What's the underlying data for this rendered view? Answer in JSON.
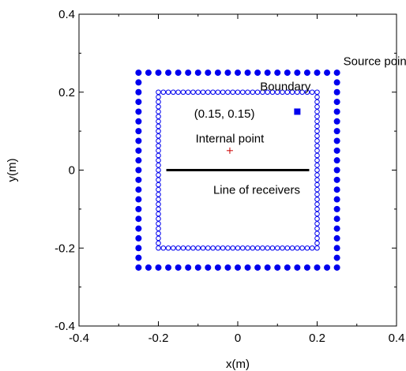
{
  "chart_data": {
    "type": "scatter",
    "xlabel": "x(m)",
    "ylabel": "y(m)",
    "xlim": [
      -0.4,
      0.4
    ],
    "ylim": [
      -0.4,
      0.4
    ],
    "x_ticks": [
      "-0.4",
      "-0.2",
      "0",
      "0.2",
      "0.4"
    ],
    "y_ticks": [
      "0.4",
      "0.2",
      "0",
      "-0.2",
      "-0.4"
    ],
    "grid": false,
    "series": [
      {
        "name": "Source points",
        "shape": "square",
        "marker": "filled-circle",
        "color": "#0000ee",
        "half_size": 0.25,
        "points_per_side": 21
      },
      {
        "name": "Boundary",
        "shape": "square",
        "marker": "open-circle",
        "color": "#0000ee",
        "half_size": 0.2,
        "points_per_side": 33
      },
      {
        "name": "Internal point",
        "marker": "plus",
        "color": "#cc0000",
        "x": -0.02,
        "y": 0.05
      },
      {
        "name": "Line of receivers",
        "marker": "line",
        "color": "#000000",
        "x": [
          -0.18,
          0.18
        ],
        "y": [
          0,
          0
        ]
      },
      {
        "name": "(0.15, 0.15)",
        "marker": "filled-square",
        "color": "#0000ee",
        "x": 0.15,
        "y": 0.15
      }
    ],
    "annotations": [
      {
        "id": "source",
        "text": "Source points",
        "x": 0.27,
        "y": 0.28
      },
      {
        "id": "boundary",
        "text": "Boundary",
        "x": 0.12,
        "y": 0.215
      },
      {
        "id": "corner",
        "text": "(0.15, 0.15)",
        "x": -0.11,
        "y": 0.145
      },
      {
        "id": "internal",
        "text": "Internal point",
        "x": -0.02,
        "y": 0.065
      },
      {
        "id": "receivers",
        "text": "Line of receivers",
        "x": 0.0,
        "y": -0.04
      }
    ]
  }
}
